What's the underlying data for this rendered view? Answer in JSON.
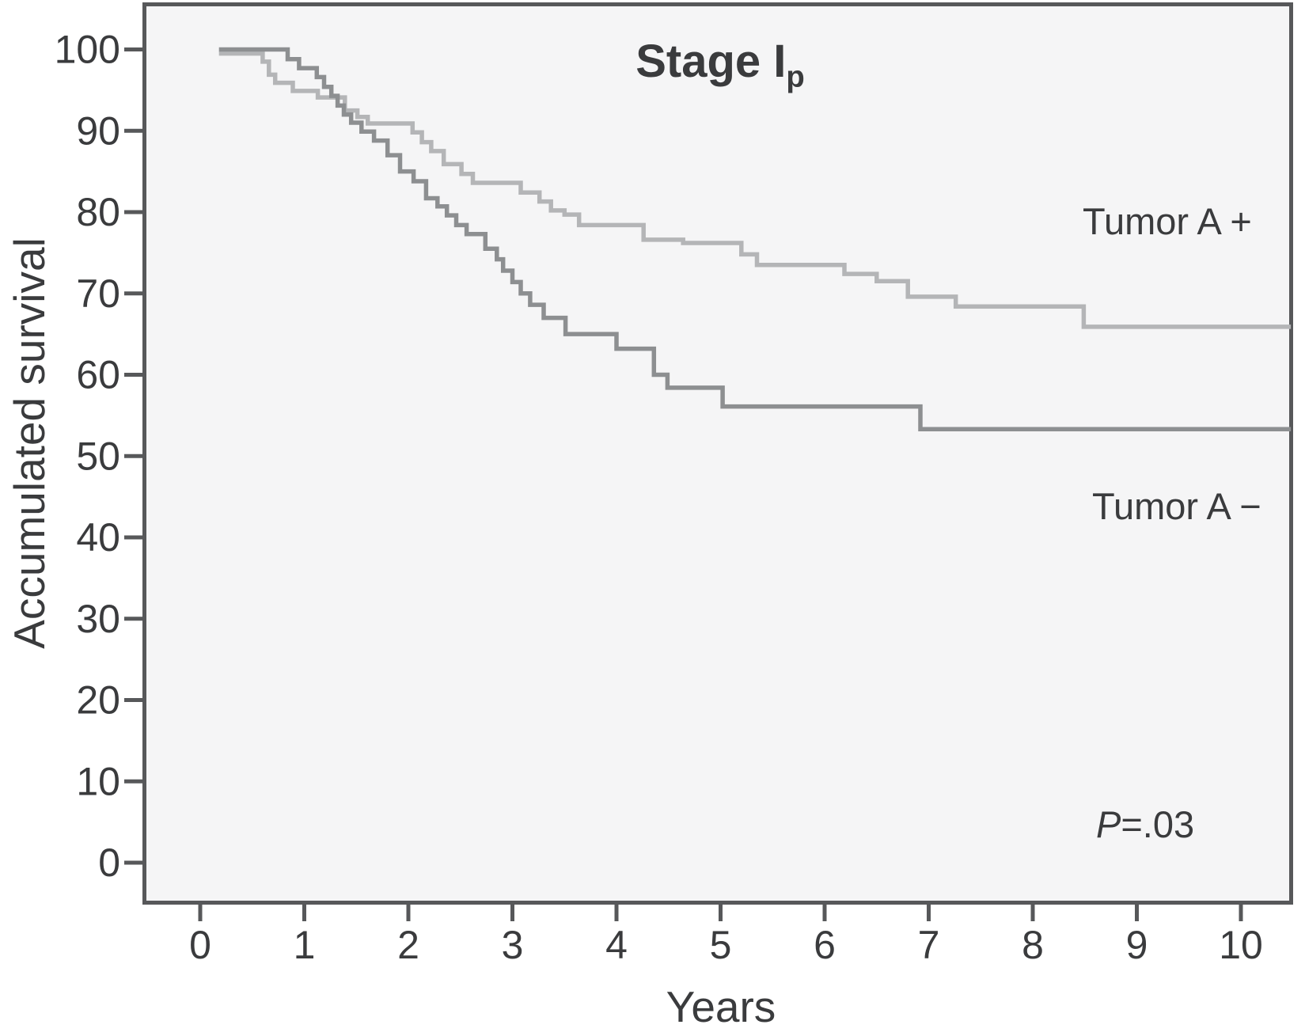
{
  "figure": {
    "title": "Stage I",
    "title_subscript": "p",
    "p_value_label": "P",
    "p_value_text": "=.03"
  },
  "chart_data": {
    "type": "line",
    "subtype": "kaplan-meier-step",
    "title": "Stage I",
    "title_subscript": "p",
    "xlabel": "Years",
    "ylabel": "Accumulated survival",
    "xlim": [
      -0.55,
      10.48
    ],
    "ylim": [
      -5.2,
      105.8
    ],
    "x_ticks": [
      0,
      1,
      2,
      3,
      4,
      5,
      6,
      7,
      8,
      9,
      10
    ],
    "y_ticks": [
      0,
      10,
      20,
      30,
      40,
      50,
      60,
      70,
      80,
      90,
      100
    ],
    "grid": false,
    "legend_position": "inline-right",
    "annotation": "P=.03",
    "plot_background": "#f5f5f6",
    "axis_color": "#57585a",
    "text_color": "#3a3b3d",
    "series": [
      {
        "name": "Tumor A +",
        "color": "#b4b5b7",
        "points": [
          [
            0.18,
            99.5
          ],
          [
            0.6,
            98.5
          ],
          [
            0.66,
            96.9
          ],
          [
            0.72,
            95.9
          ],
          [
            0.89,
            94.9
          ],
          [
            1.13,
            94.1
          ],
          [
            1.39,
            92.5
          ],
          [
            1.51,
            91.7
          ],
          [
            1.61,
            90.9
          ],
          [
            2.04,
            89.8
          ],
          [
            2.13,
            88.6
          ],
          [
            2.22,
            87.5
          ],
          [
            2.34,
            85.9
          ],
          [
            2.51,
            84.7
          ],
          [
            2.62,
            83.6
          ],
          [
            3.08,
            82.4
          ],
          [
            3.26,
            81.3
          ],
          [
            3.37,
            80.2
          ],
          [
            3.5,
            79.7
          ],
          [
            3.64,
            78.4
          ],
          [
            4.26,
            76.6
          ],
          [
            4.64,
            76.2
          ],
          [
            5.2,
            74.8
          ],
          [
            5.35,
            73.5
          ],
          [
            6.19,
            72.4
          ],
          [
            6.5,
            71.5
          ],
          [
            6.8,
            69.6
          ],
          [
            7.26,
            68.4
          ],
          [
            8.49,
            65.9
          ],
          [
            10.48,
            65.9
          ]
        ]
      },
      {
        "name": "Tumor A −",
        "color": "#8d8f91",
        "points": [
          [
            0.18,
            100.0
          ],
          [
            0.84,
            98.8
          ],
          [
            0.95,
            97.7
          ],
          [
            1.12,
            96.6
          ],
          [
            1.19,
            95.4
          ],
          [
            1.26,
            94.3
          ],
          [
            1.32,
            93.1
          ],
          [
            1.38,
            92.0
          ],
          [
            1.45,
            91.0
          ],
          [
            1.55,
            89.9
          ],
          [
            1.67,
            88.8
          ],
          [
            1.8,
            87.0
          ],
          [
            1.92,
            85.0
          ],
          [
            2.05,
            83.8
          ],
          [
            2.17,
            81.7
          ],
          [
            2.28,
            80.7
          ],
          [
            2.37,
            79.6
          ],
          [
            2.46,
            78.4
          ],
          [
            2.56,
            77.3
          ],
          [
            2.74,
            75.5
          ],
          [
            2.85,
            74.2
          ],
          [
            2.91,
            72.8
          ],
          [
            3.0,
            71.4
          ],
          [
            3.08,
            70.0
          ],
          [
            3.17,
            68.6
          ],
          [
            3.3,
            67.0
          ],
          [
            3.51,
            65.0
          ],
          [
            4.0,
            63.2
          ],
          [
            4.36,
            60.0
          ],
          [
            4.49,
            58.4
          ],
          [
            5.02,
            56.1
          ],
          [
            6.92,
            53.3
          ],
          [
            10.48,
            53.3
          ]
        ]
      }
    ]
  }
}
